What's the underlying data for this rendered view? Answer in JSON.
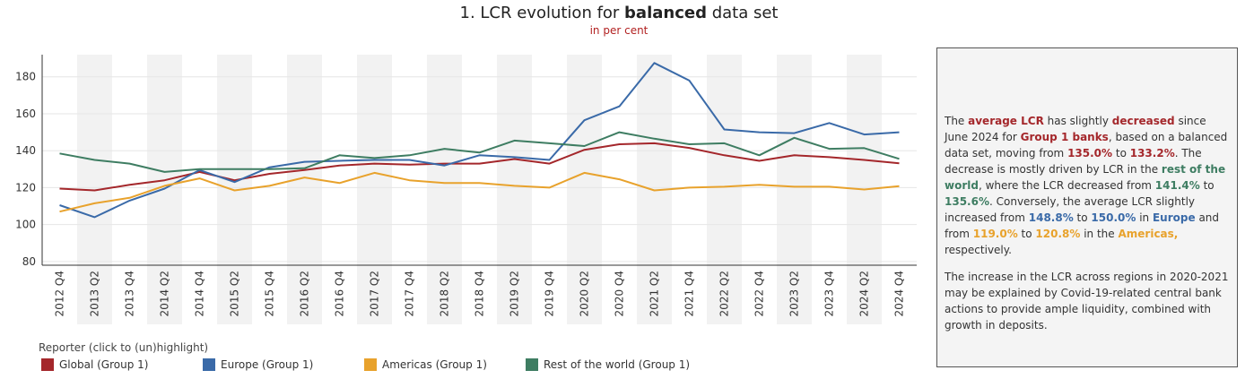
{
  "header": {
    "title_prefix": "1. LCR evolution for ",
    "title_bold": "balanced",
    "title_suffix": " data set",
    "subtitle": "in per cent"
  },
  "legend": {
    "title": "Reporter (click to (un)highlight)",
    "items": [
      {
        "label": "Global (Group 1)",
        "color": "#a4272b"
      },
      {
        "label": "Europe (Group 1)",
        "color": "#3a6aa8"
      },
      {
        "label": "Americas (Group 1)",
        "color": "#e8a22c"
      },
      {
        "label": "Rest of the world (Group 1)",
        "color": "#3e7d62"
      }
    ]
  },
  "info": {
    "p1": [
      {
        "t": "The ",
        "c": ""
      },
      {
        "t": "average LCR",
        "c": "red"
      },
      {
        "t": " has slightly ",
        "c": ""
      },
      {
        "t": "decreased",
        "c": "red"
      },
      {
        "t": " since June 2024 for ",
        "c": ""
      },
      {
        "t": "Group 1 banks",
        "c": "red"
      },
      {
        "t": ", based on a balanced data set, moving from ",
        "c": ""
      },
      {
        "t": "135.0%",
        "c": "red"
      },
      {
        "t": " to ",
        "c": ""
      },
      {
        "t": "133.2%",
        "c": "red"
      },
      {
        "t": ". The decrease is mostly driven by LCR in the ",
        "c": ""
      },
      {
        "t": "rest of the world",
        "c": "green"
      },
      {
        "t": ", where the LCR decreased from ",
        "c": ""
      },
      {
        "t": "141.4%",
        "c": "green"
      },
      {
        "t": " to ",
        "c": ""
      },
      {
        "t": "135.6%",
        "c": "green"
      },
      {
        "t": ". Conversely, the average LCR slightly increased from ",
        "c": ""
      },
      {
        "t": "148.8%",
        "c": "blue"
      },
      {
        "t": " to ",
        "c": ""
      },
      {
        "t": "150.0%",
        "c": "blue"
      },
      {
        "t": " in ",
        "c": ""
      },
      {
        "t": "Europe",
        "c": "blue"
      },
      {
        "t": " and from ",
        "c": ""
      },
      {
        "t": "119.0%",
        "c": "orange"
      },
      {
        "t": " to ",
        "c": ""
      },
      {
        "t": "120.8%",
        "c": "orange"
      },
      {
        "t": " in the ",
        "c": ""
      },
      {
        "t": "Americas,",
        "c": "orange"
      },
      {
        "t": " respectively.",
        "c": ""
      }
    ],
    "p2": "The increase in the LCR across regions in 2020-2021 may be explained by Covid-19-related central bank actions to provide ample liquidity, combined with growth in deposits."
  },
  "chart_data": {
    "type": "line",
    "title": "1. LCR evolution for balanced data set",
    "subtitle": "in per cent",
    "categories": [
      "2012 Q4",
      "2013 Q2",
      "2013 Q4",
      "2014 Q2",
      "2014 Q4",
      "2015 Q2",
      "2015 Q4",
      "2016 Q2",
      "2016 Q4",
      "2017 Q2",
      "2017 Q4",
      "2018 Q2",
      "2018 Q4",
      "2019 Q2",
      "2019 Q4",
      "2020 Q2",
      "2020 Q4",
      "2021 Q2",
      "2021 Q4",
      "2022 Q2",
      "2022 Q4",
      "2023 Q2",
      "2023 Q4",
      "2024 Q2",
      "2024 Q4"
    ],
    "yticks": [
      80,
      100,
      120,
      140,
      160,
      180
    ],
    "ylim": [
      78,
      192
    ],
    "grid": true,
    "series": [
      {
        "name": "Global (Group 1)",
        "color": "#a4272b",
        "values": [
          119.5,
          118.5,
          121.5,
          124,
          128.5,
          124,
          127.5,
          129.5,
          132,
          133,
          132.5,
          133,
          133,
          135.5,
          133,
          140.5,
          143.5,
          144,
          141.5,
          137.5,
          134.5,
          137.5,
          136.5,
          135,
          133.2
        ]
      },
      {
        "name": "Europe (Group 1)",
        "color": "#3a6aa8",
        "values": [
          110.5,
          104,
          113,
          119.5,
          129.5,
          123,
          131,
          134,
          134.5,
          135,
          135,
          132,
          137.5,
          136.5,
          135,
          156.5,
          164,
          187.5,
          178,
          151.5,
          150,
          149.5,
          155,
          148.8,
          150
        ]
      },
      {
        "name": "Americas (Group 1)",
        "color": "#e8a22c",
        "values": [
          107,
          111.5,
          114.5,
          121,
          125,
          118.5,
          121,
          125.5,
          122.5,
          128,
          124,
          122.5,
          122.5,
          121,
          120,
          128,
          124.5,
          118.5,
          120,
          120.5,
          121.5,
          120.5,
          120.5,
          119,
          120.8
        ]
      },
      {
        "name": "Rest of the world (Group 1)",
        "color": "#3e7d62",
        "values": [
          138.5,
          135,
          133,
          128.5,
          130,
          130,
          130,
          130.5,
          137.5,
          136,
          137.5,
          141,
          139,
          145.5,
          144,
          142.5,
          150,
          146.5,
          143.5,
          144,
          137.5,
          147,
          141,
          141.4,
          135.6
        ]
      }
    ]
  }
}
